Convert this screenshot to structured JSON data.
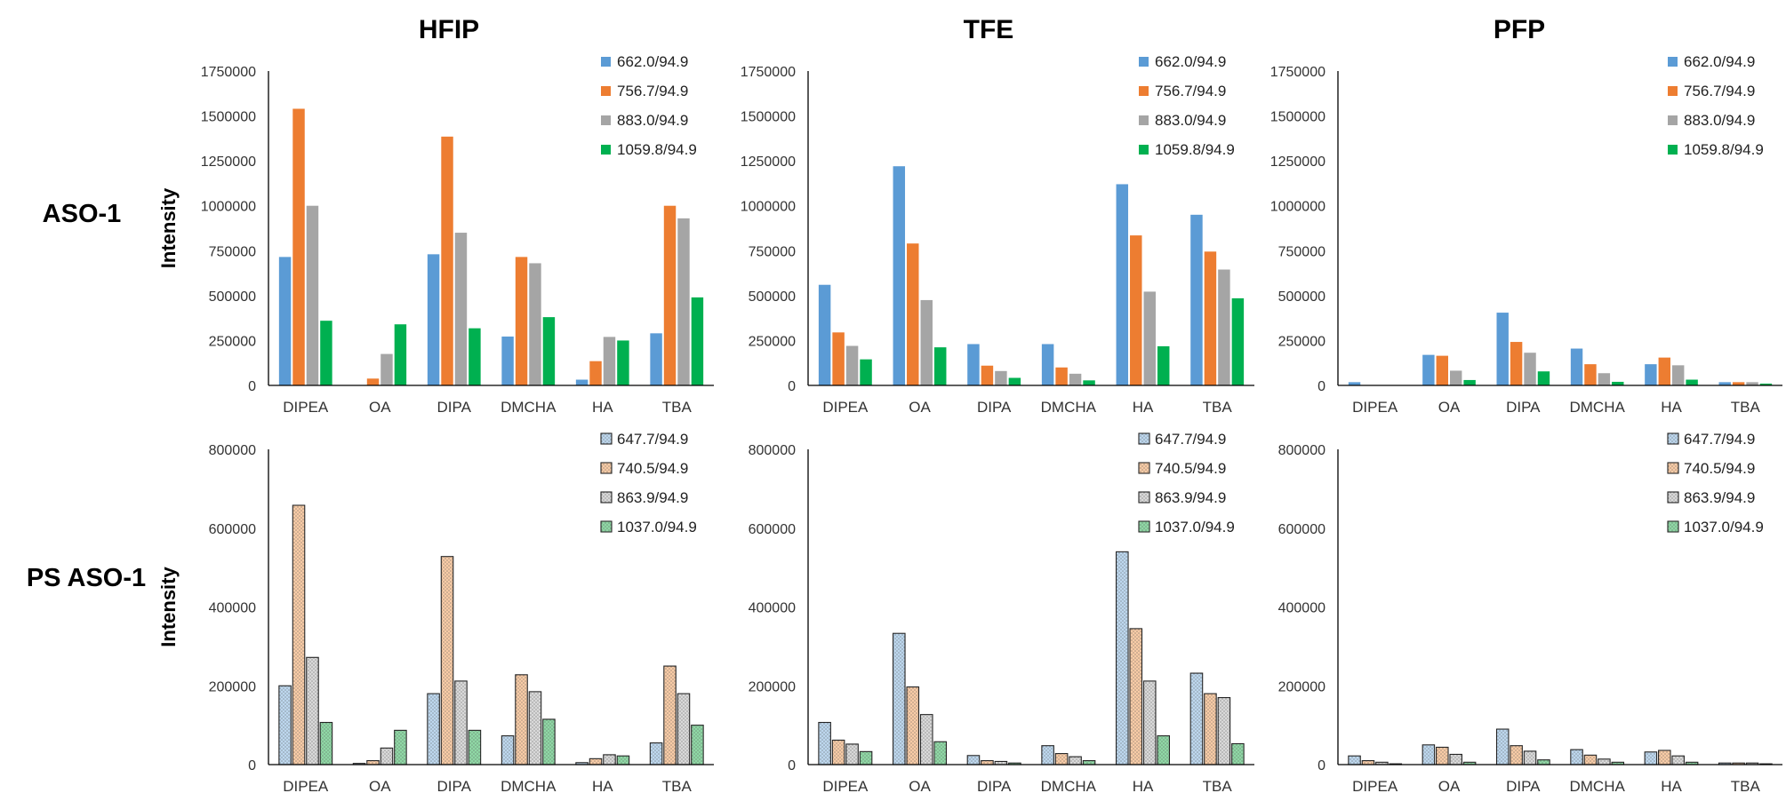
{
  "column_titles": [
    "HFIP",
    "TFE",
    "PFP"
  ],
  "row_labels": [
    "ASO-1",
    "PS ASO-1"
  ],
  "y_axis_label": "Intensity",
  "chart_data": [
    {
      "type": "bar",
      "row": 0,
      "col": 0,
      "title": "HFIP",
      "categories": [
        "DIPEA",
        "OA",
        "DIPA",
        "DMCHA",
        "HA",
        "TBA"
      ],
      "ylabel": "Intensity",
      "ylim": [
        0,
        1750000
      ],
      "yticks": [
        0,
        250000,
        500000,
        750000,
        1000000,
        1250000,
        1500000,
        1750000
      ],
      "legend_position": "top-right",
      "series": [
        {
          "name": "662.0/94.9",
          "values": [
            715000,
            0,
            730000,
            272000,
            32000,
            290000
          ]
        },
        {
          "name": "756.7/94.9",
          "values": [
            1540000,
            38000,
            1385000,
            715000,
            135000,
            1000000
          ]
        },
        {
          "name": "883.0/94.9",
          "values": [
            1000000,
            175000,
            850000,
            680000,
            270000,
            930000
          ]
        },
        {
          "name": "1059.8/94.9",
          "values": [
            360000,
            340000,
            318000,
            380000,
            250000,
            490000
          ]
        }
      ]
    },
    {
      "type": "bar",
      "row": 0,
      "col": 1,
      "title": "TFE",
      "categories": [
        "DIPEA",
        "OA",
        "DIPA",
        "DMCHA",
        "HA",
        "TBA"
      ],
      "ylabel": "",
      "ylim": [
        0,
        1750000
      ],
      "yticks": [
        0,
        250000,
        500000,
        750000,
        1000000,
        1250000,
        1500000,
        1750000
      ],
      "legend_position": "top-right",
      "series": [
        {
          "name": "662.0/94.9",
          "values": [
            560000,
            1220000,
            230000,
            230000,
            1120000,
            950000
          ]
        },
        {
          "name": "756.7/94.9",
          "values": [
            295000,
            790000,
            110000,
            100000,
            835000,
            745000
          ]
        },
        {
          "name": "883.0/94.9",
          "values": [
            220000,
            475000,
            80000,
            65000,
            522000,
            645000
          ]
        },
        {
          "name": "1059.8/94.9",
          "values": [
            145000,
            212000,
            42000,
            28000,
            218000,
            485000
          ]
        }
      ]
    },
    {
      "type": "bar",
      "row": 0,
      "col": 2,
      "title": "PFP",
      "categories": [
        "DIPEA",
        "OA",
        "DIPA",
        "DMCHA",
        "HA",
        "TBA"
      ],
      "ylabel": "",
      "ylim": [
        0,
        1750000
      ],
      "yticks": [
        0,
        250000,
        500000,
        750000,
        1000000,
        1250000,
        1500000,
        1750000
      ],
      "legend_position": "top-right",
      "series": [
        {
          "name": "662.0/94.9",
          "values": [
            18000,
            170000,
            405000,
            205000,
            118000,
            18000
          ]
        },
        {
          "name": "756.7/94.9",
          "values": [
            0,
            165000,
            242000,
            118000,
            155000,
            18000
          ]
        },
        {
          "name": "883.0/94.9",
          "values": [
            0,
            82000,
            182000,
            68000,
            112000,
            18000
          ]
        },
        {
          "name": "1059.8/94.9",
          "values": [
            0,
            30000,
            78000,
            20000,
            32000,
            10000
          ]
        }
      ]
    },
    {
      "type": "bar",
      "row": 1,
      "col": 0,
      "title": "",
      "categories": [
        "DIPEA",
        "OA",
        "DIPA",
        "DMCHA",
        "HA",
        "TBA"
      ],
      "ylabel": "Intensity",
      "ylim": [
        0,
        800000
      ],
      "yticks": [
        0,
        200000,
        400000,
        600000,
        800000
      ],
      "legend_position": "top-right",
      "series": [
        {
          "name": "647.7/94.9",
          "values": [
            200000,
            3000,
            180000,
            73000,
            5000,
            55000
          ]
        },
        {
          "name": "740.5/94.9",
          "values": [
            658000,
            10000,
            528000,
            228000,
            15000,
            250000
          ]
        },
        {
          "name": "863.9/94.9",
          "values": [
            272000,
            42000,
            212000,
            185000,
            25000,
            180000
          ]
        },
        {
          "name": "1037.0/94.9",
          "values": [
            107000,
            87000,
            87000,
            115000,
            22000,
            100000
          ]
        }
      ]
    },
    {
      "type": "bar",
      "row": 1,
      "col": 1,
      "title": "",
      "categories": [
        "DIPEA",
        "OA",
        "DIPA",
        "DMCHA",
        "HA",
        "TBA"
      ],
      "ylabel": "",
      "ylim": [
        0,
        800000
      ],
      "yticks": [
        0,
        200000,
        400000,
        600000,
        800000
      ],
      "legend_position": "top-right",
      "series": [
        {
          "name": "647.7/94.9",
          "values": [
            107000,
            333000,
            23000,
            48000,
            540000,
            232000
          ]
        },
        {
          "name": "740.5/94.9",
          "values": [
            62000,
            197000,
            10000,
            28000,
            345000,
            180000
          ]
        },
        {
          "name": "863.9/94.9",
          "values": [
            52000,
            127000,
            8000,
            20000,
            212000,
            170000
          ]
        },
        {
          "name": "1037.0/94.9",
          "values": [
            33000,
            58000,
            4000,
            10000,
            73000,
            53000
          ]
        }
      ]
    },
    {
      "type": "bar",
      "row": 1,
      "col": 2,
      "title": "",
      "categories": [
        "DIPEA",
        "OA",
        "DIPA",
        "DMCHA",
        "HA",
        "TBA"
      ],
      "ylabel": "",
      "ylim": [
        0,
        800000
      ],
      "yticks": [
        0,
        200000,
        400000,
        600000,
        800000
      ],
      "legend_position": "top-right",
      "series": [
        {
          "name": "647.7/94.9",
          "values": [
            22000,
            50000,
            90000,
            38000,
            32000,
            4000
          ]
        },
        {
          "name": "740.5/94.9",
          "values": [
            10000,
            44000,
            48000,
            24000,
            36000,
            4000
          ]
        },
        {
          "name": "863.9/94.9",
          "values": [
            6000,
            26000,
            34000,
            14000,
            22000,
            4000
          ]
        },
        {
          "name": "1037.0/94.9",
          "values": [
            2000,
            6000,
            12000,
            6000,
            6000,
            2000
          ]
        }
      ]
    }
  ],
  "colors": {
    "aso": [
      "#5b9bd5",
      "#ed7d31",
      "#a5a5a5",
      "#00b050"
    ],
    "ps_aso_fill": [
      "#bdd7ee",
      "#f8cba6",
      "#d9d9d9",
      "#8fd8a5"
    ]
  }
}
